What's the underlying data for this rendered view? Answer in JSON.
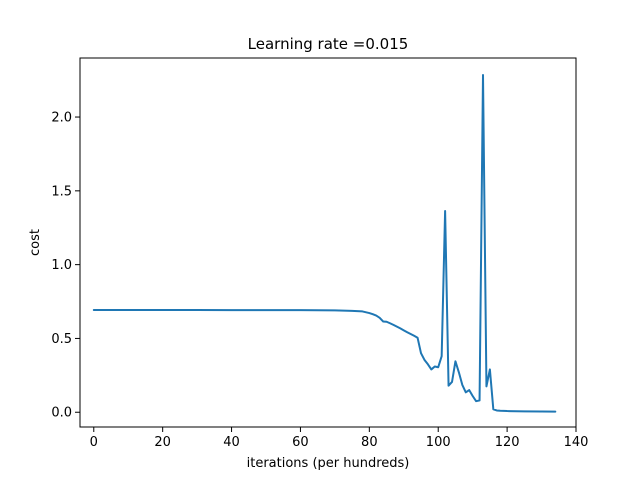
{
  "chart_data": {
    "type": "line",
    "title": "Learning rate =0.015",
    "xlabel": "iterations (per hundreds)",
    "ylabel": "cost",
    "xlim": [
      -4,
      140
    ],
    "ylim": [
      -0.1,
      2.4
    ],
    "xticks": [
      0,
      20,
      40,
      60,
      80,
      100,
      120,
      140
    ],
    "yticks": [
      0.0,
      0.5,
      1.0,
      1.5,
      2.0
    ],
    "xtick_labels": [
      "0",
      "20",
      "40",
      "60",
      "80",
      "100",
      "120",
      "140"
    ],
    "ytick_labels": [
      "0.0",
      "0.5",
      "1.0",
      "1.5",
      "2.0"
    ],
    "grid": false,
    "legend": null,
    "series": [
      {
        "color": "#1f77b4",
        "x": [
          0,
          10,
          20,
          30,
          40,
          50,
          60,
          65,
          70,
          75,
          78,
          80,
          81,
          82,
          83,
          84,
          85,
          86,
          87,
          88,
          89,
          90,
          91,
          92,
          93,
          94,
          95,
          96,
          97,
          98,
          99,
          100,
          101,
          102,
          103,
          104,
          105,
          106,
          107,
          108,
          109,
          110,
          111,
          112,
          113,
          114,
          115,
          116,
          117,
          118,
          120,
          125,
          130,
          134
        ],
        "y": [
          0.693,
          0.693,
          0.693,
          0.693,
          0.692,
          0.692,
          0.692,
          0.691,
          0.69,
          0.687,
          0.683,
          0.672,
          0.664,
          0.655,
          0.64,
          0.615,
          0.613,
          0.603,
          0.592,
          0.58,
          0.568,
          0.555,
          0.542,
          0.53,
          0.518,
          0.505,
          0.4,
          0.355,
          0.325,
          0.29,
          0.31,
          0.305,
          0.38,
          1.363,
          0.18,
          0.205,
          0.345,
          0.27,
          0.185,
          0.135,
          0.15,
          0.11,
          0.075,
          0.08,
          2.285,
          0.175,
          0.29,
          0.02,
          0.012,
          0.01,
          0.008,
          0.006,
          0.005,
          0.004
        ]
      }
    ]
  }
}
